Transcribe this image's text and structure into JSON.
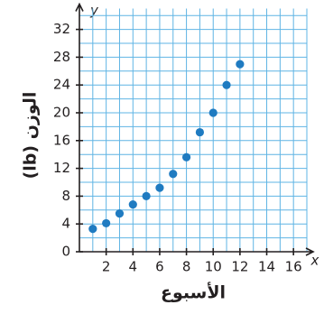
{
  "chart_data": {
    "type": "scatter",
    "x_label": "x",
    "y_label": "y",
    "x_title": "الأسبوع",
    "y_title": "الوزن (lb)",
    "x": [
      1,
      2,
      3,
      4,
      5,
      6,
      7,
      8,
      9,
      10,
      11,
      12
    ],
    "values": [
      3.3,
      4.1,
      5.5,
      6.8,
      8.0,
      9.2,
      11.2,
      13.6,
      17.2,
      20,
      24,
      27
    ],
    "color": "#1f7bc1",
    "xlim": [
      0,
      17
    ],
    "ylim": [
      0,
      35
    ],
    "xticks": [
      2,
      4,
      6,
      8,
      10,
      12,
      14,
      16
    ],
    "yticks": [
      0,
      4,
      8,
      12,
      16,
      20,
      24,
      28,
      32
    ],
    "grid": {
      "x_step": 1,
      "y_step": 2
    }
  }
}
